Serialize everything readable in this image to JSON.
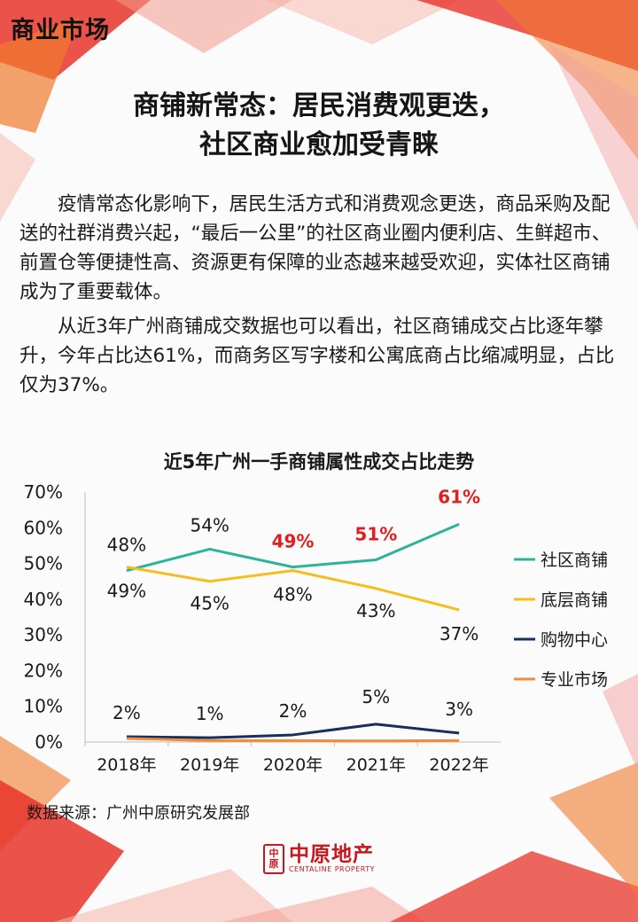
{
  "header": {
    "section_label": "商业市场"
  },
  "article": {
    "title_line1": "商铺新常态：居民消费观更迭，",
    "title_line2": "社区商业愈加受青睐",
    "paragraph1": "疫情常态化影响下，居民生活方式和消费观念更迭，商品采购及配送的社群消费兴起，“最后一公里”的社区商业圈内便利店、生鲜超市、前置仓等便捷性高、资源更有保障的业态越来越受欢迎，实体社区商铺成为了重要载体。",
    "paragraph2": "从近3年广州商铺成交数据也可以看出，社区商铺成交占比逐年攀升，今年占比达61%，而商务区写字楼和公寓底商占比缩减明显，占比仅为37%。"
  },
  "chart_data": {
    "type": "line",
    "title": "近5年广州一手商铺属性成交占比走势",
    "x": [
      "2018年",
      "2019年",
      "2020年",
      "2021年",
      "2022年"
    ],
    "yticks": [
      "0%",
      "10%",
      "20%",
      "30%",
      "40%",
      "50%",
      "60%",
      "70%"
    ],
    "ylim": [
      0,
      70
    ],
    "series": [
      {
        "name": "社区商铺",
        "color": "#2db39b",
        "values": [
          48,
          54,
          49,
          51,
          61
        ],
        "labels": [
          "48%",
          "54%",
          "49%",
          "51%",
          "61%"
        ]
      },
      {
        "name": "底层商铺",
        "color": "#f5be1e",
        "values": [
          49,
          45,
          48,
          43,
          37
        ],
        "labels": [
          "49%",
          "45%",
          "48%",
          "43%",
          "37%"
        ]
      },
      {
        "name": "购物中心",
        "color": "#15305b",
        "values": [
          1.5,
          1.2,
          2,
          5,
          2.5
        ],
        "labels": [
          "2%",
          "1%",
          "2%",
          "5%",
          "3%"
        ]
      },
      {
        "name": "专业市场",
        "color": "#f08c3c",
        "values": [
          1,
          0.4,
          0.4,
          0.3,
          0.4
        ]
      }
    ],
    "legend": "right",
    "highlight_color": "#e02020"
  },
  "footer": {
    "source": "数据来源：广州中原研究发展部",
    "logo_mark": "中原",
    "logo_cn": "中原地产",
    "logo_en": "CENTALINE PROPERTY"
  }
}
